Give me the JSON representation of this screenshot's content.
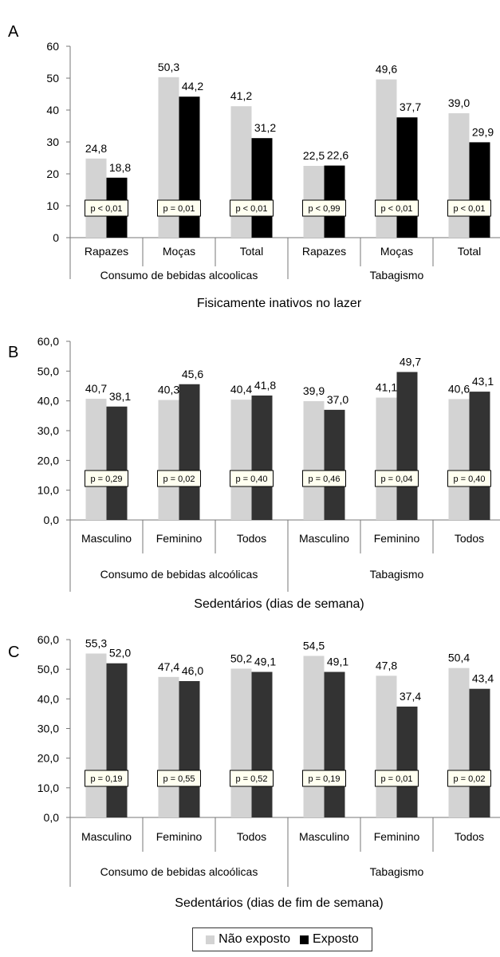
{
  "legend": {
    "not_exposed": "Não exposto",
    "exposed": "Exposto"
  },
  "colors": {
    "not_exposed": "#d3d3d3",
    "exposed_a": "#000000",
    "exposed_bc": "#333333"
  },
  "chart_data": [
    {
      "panel": "A",
      "type": "bar",
      "title": "Fisicamente inativos no lazer",
      "categories": [
        "Rapazes",
        "Moças",
        "Total",
        "Rapazes",
        "Moças",
        "Total"
      ],
      "groups": [
        {
          "label": "Consumo de bebidas alcoolicas",
          "span": [
            0,
            2
          ]
        },
        {
          "label": "Tabagismo",
          "span": [
            3,
            5
          ]
        }
      ],
      "series": [
        {
          "name": "Não exposto",
          "values": [
            24.8,
            50.3,
            41.2,
            22.5,
            49.6,
            39.0
          ]
        },
        {
          "name": "Exposto",
          "values": [
            18.8,
            44.2,
            31.2,
            22.6,
            37.7,
            29.9
          ]
        }
      ],
      "value_labels": {
        "not_exposed": [
          "24,8",
          "50,3",
          "41,2",
          "22,5",
          "49,6",
          "39,0"
        ],
        "exposed": [
          "18,8",
          "44,2",
          "31,2",
          "22,6",
          "37,7",
          "29,9"
        ]
      },
      "p_values": [
        "p < 0,01",
        "p = 0,01",
        "p < 0,01",
        "p < 0,99",
        "p < 0,01",
        "p < 0,01"
      ],
      "ylim": [
        0,
        60
      ],
      "yticks": [
        0,
        10,
        20,
        30,
        40,
        50,
        60
      ],
      "ytick_labels": [
        "0",
        "10",
        "20",
        "30",
        "40",
        "50",
        "60"
      ]
    },
    {
      "panel": "B",
      "type": "bar",
      "title": "Sedentários (dias de semana)",
      "categories": [
        "Masculino",
        "Feminino",
        "Todos",
        "Masculino",
        "Feminino",
        "Todos"
      ],
      "groups": [
        {
          "label": "Consumo de bebidas alcoólicas",
          "span": [
            0,
            2
          ]
        },
        {
          "label": "Tabagismo",
          "span": [
            3,
            5
          ]
        }
      ],
      "series": [
        {
          "name": "Não exposto",
          "values": [
            40.7,
            40.3,
            40.4,
            39.9,
            41.1,
            40.6
          ]
        },
        {
          "name": "Exposto",
          "values": [
            38.1,
            45.6,
            41.8,
            37.0,
            49.7,
            43.1
          ]
        }
      ],
      "value_labels": {
        "not_exposed": [
          "40,7",
          "40,3",
          "40,4",
          "39,9",
          "41,1",
          "40,6"
        ],
        "exposed": [
          "38,1",
          "45,6",
          "41,8",
          "37,0",
          "49,7",
          "43,1"
        ]
      },
      "p_values": [
        "p = 0,29",
        "p = 0,02",
        "p = 0,40",
        "p = 0,46",
        "p = 0,04",
        "p = 0,40"
      ],
      "ylim": [
        0,
        60
      ],
      "yticks": [
        0,
        10,
        20,
        30,
        40,
        50,
        60
      ],
      "ytick_labels": [
        "0,0",
        "10,0",
        "20,0",
        "30,0",
        "40,0",
        "50,0",
        "60,0"
      ]
    },
    {
      "panel": "C",
      "type": "bar",
      "title": "Sedentários (dias de fim de semana)",
      "categories": [
        "Masculino",
        "Feminino",
        "Todos",
        "Masculino",
        "Feminino",
        "Todos"
      ],
      "groups": [
        {
          "label": "Consumo de bebidas alcoólicas",
          "span": [
            0,
            2
          ]
        },
        {
          "label": "Tabagismo",
          "span": [
            3,
            5
          ]
        }
      ],
      "series": [
        {
          "name": "Não exposto",
          "values": [
            55.3,
            47.4,
            50.2,
            54.5,
            47.8,
            50.4
          ]
        },
        {
          "name": "Exposto",
          "values": [
            52.0,
            46.0,
            49.1,
            49.1,
            37.4,
            43.4
          ]
        }
      ],
      "value_labels": {
        "not_exposed": [
          "55,3",
          "47,4",
          "50,2",
          "54,5",
          "47,8",
          "50,4"
        ],
        "exposed": [
          "52,0",
          "46,0",
          "49,1",
          "49,1",
          "37,4",
          "43,4"
        ]
      },
      "p_values": [
        "p = 0,19",
        "p = 0,55",
        "p = 0,52",
        "p = 0,19",
        "p = 0,01",
        "p = 0,02"
      ],
      "ylim": [
        0,
        60
      ],
      "yticks": [
        0,
        10,
        20,
        30,
        40,
        50,
        60
      ],
      "ytick_labels": [
        "0,0",
        "10,0",
        "20,0",
        "30,0",
        "40,0",
        "50,0",
        "60,0"
      ]
    }
  ]
}
